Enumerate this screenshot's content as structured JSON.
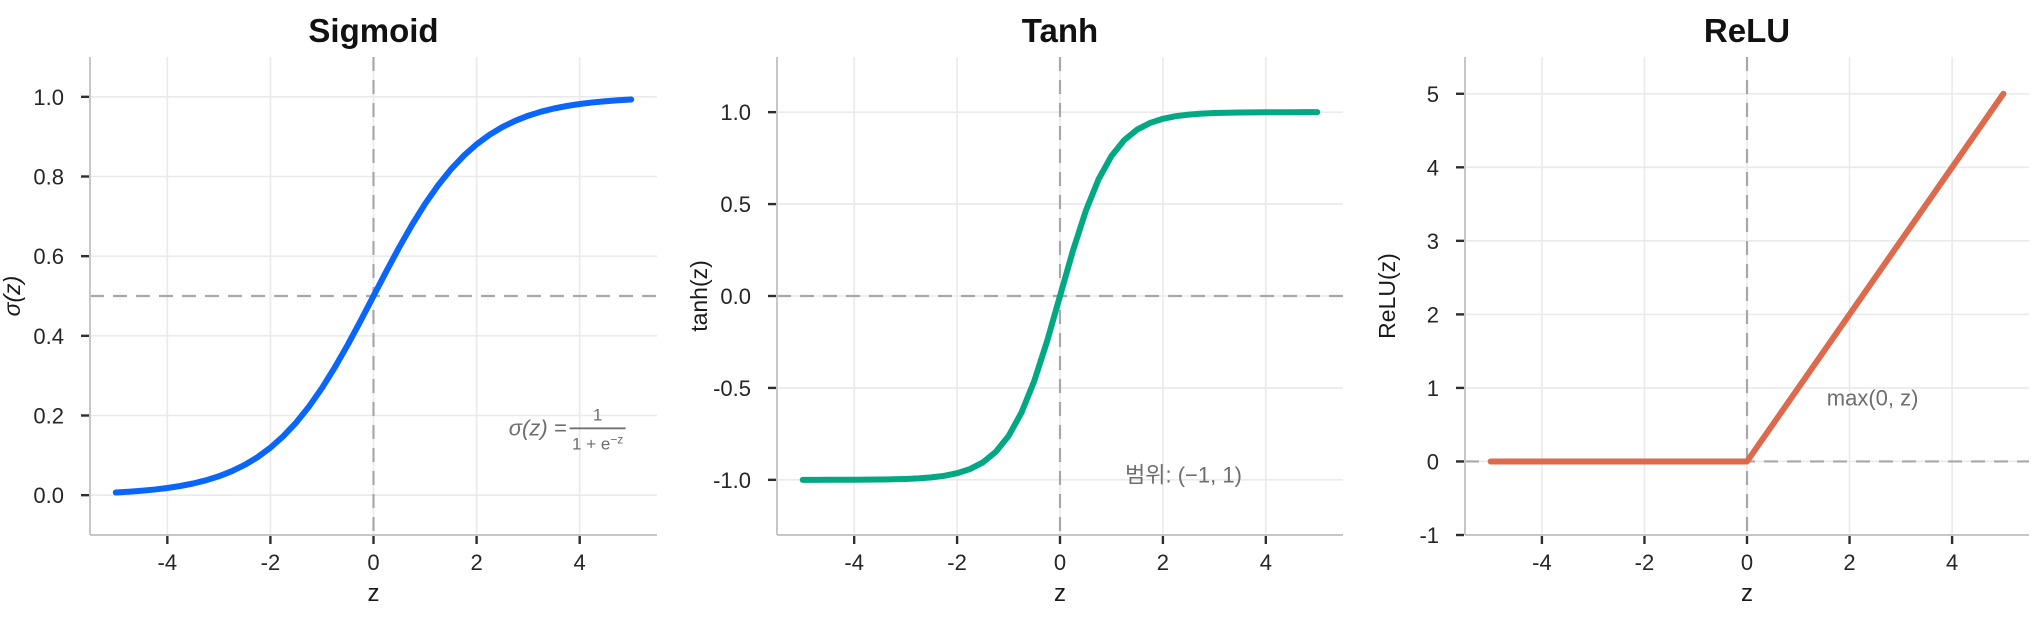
{
  "figure": {
    "background": "#ffffff"
  },
  "style": {
    "grid_color": "#eaeaea",
    "spine_color": "#c7c7c7",
    "tick_color": "#2e2e2e",
    "tick_label_color": "#262626",
    "title_color": "#111111",
    "annotation_color": "#6e6e6e",
    "ref_line_color": "#a8a8a8"
  },
  "chart_data": [
    {
      "type": "line",
      "title": "Sigmoid",
      "xlabel": "z",
      "ylabel": "σ(z)",
      "ylabel_italic": true,
      "color": "#0a66fb",
      "grid": true,
      "xlim": [
        -5.5,
        5.5
      ],
      "ylim": [
        -0.1,
        1.1
      ],
      "xticks": [
        -4,
        -2,
        0,
        2,
        4
      ],
      "xtick_labels": [
        "-4",
        "-2",
        "0",
        "2",
        "4"
      ],
      "yticks": [
        0.0,
        0.2,
        0.4,
        0.6,
        0.8,
        1.0
      ],
      "ytick_labels": [
        "0.0",
        "0.2",
        "0.4",
        "0.6",
        "0.8",
        "1.0"
      ],
      "ref_lines": [
        {
          "orient": "h",
          "value": 0.5
        },
        {
          "orient": "v",
          "value": 0
        }
      ],
      "series": [
        {
          "name": "sigmoid",
          "sampler": {
            "start": -5,
            "step": 0.25
          },
          "y": [
            0.0067,
            0.0086,
            0.011,
            0.0141,
            0.018,
            0.023,
            0.0293,
            0.0373,
            0.0474,
            0.0601,
            0.0759,
            0.0953,
            0.1192,
            0.148,
            0.1824,
            0.2227,
            0.2689,
            0.3208,
            0.3775,
            0.4378,
            0.5,
            0.5622,
            0.6225,
            0.6792,
            0.7311,
            0.7773,
            0.8176,
            0.852,
            0.8808,
            0.9047,
            0.9241,
            0.9399,
            0.9526,
            0.9627,
            0.9707,
            0.977,
            0.982,
            0.9859,
            0.989,
            0.9914,
            0.9933
          ]
        }
      ],
      "annotation": {
        "kind": "formula",
        "lead": "σ(z) = ",
        "numerator": "1",
        "den_base": "1 + e",
        "den_sup": "−z",
        "anchor": [
          3.65,
          0.17
        ]
      }
    },
    {
      "type": "line",
      "title": "Tanh",
      "xlabel": "z",
      "ylabel": "tanh(z)",
      "ylabel_italic": false,
      "color": "#00a884",
      "grid": true,
      "xlim": [
        -5.5,
        5.5
      ],
      "ylim": [
        -1.3,
        1.3
      ],
      "xticks": [
        -4,
        -2,
        0,
        2,
        4
      ],
      "xtick_labels": [
        "-4",
        "-2",
        "0",
        "2",
        "4"
      ],
      "yticks": [
        -1.0,
        -0.5,
        0.0,
        0.5,
        1.0
      ],
      "ytick_labels": [
        "-1.0",
        "-0.5",
        "0.0",
        "0.5",
        "1.0"
      ],
      "ref_lines": [
        {
          "orient": "h",
          "value": 0
        },
        {
          "orient": "v",
          "value": 0
        }
      ],
      "series": [
        {
          "name": "tanh",
          "sampler": {
            "start": -5,
            "step": 0.25
          },
          "y": [
            -0.9999,
            -0.9999,
            -0.9998,
            -0.9996,
            -0.9993,
            -0.9989,
            -0.9982,
            -0.997,
            -0.9951,
            -0.9919,
            -0.9866,
            -0.978,
            -0.964,
            -0.9414,
            -0.9051,
            -0.8483,
            -0.7616,
            -0.6351,
            -0.4621,
            -0.2449,
            0,
            0.2449,
            0.4621,
            0.6351,
            0.7616,
            0.8483,
            0.9051,
            0.9414,
            0.964,
            0.978,
            0.9866,
            0.9919,
            0.9951,
            0.997,
            0.9982,
            0.9989,
            0.9993,
            0.9996,
            0.9998,
            0.9999,
            0.9999
          ]
        }
      ],
      "annotation": {
        "kind": "text",
        "text": "범위: (−1, 1)",
        "anchor": [
          2.4,
          -0.97
        ]
      }
    },
    {
      "type": "line",
      "title": "ReLU",
      "xlabel": "z",
      "ylabel": "ReLU(z)",
      "ylabel_italic": false,
      "color": "#dd6a4c",
      "grid": true,
      "xlim": [
        -5.5,
        5.5
      ],
      "ylim": [
        -1.0,
        5.5
      ],
      "xticks": [
        -4,
        -2,
        0,
        2,
        4
      ],
      "xtick_labels": [
        "-4",
        "-2",
        "0",
        "2",
        "4"
      ],
      "yticks": [
        -1,
        0,
        1,
        2,
        3,
        4,
        5
      ],
      "ytick_labels": [
        "-1",
        "0",
        "1",
        "2",
        "3",
        "4",
        "5"
      ],
      "ref_lines": [
        {
          "orient": "h",
          "value": 0
        },
        {
          "orient": "v",
          "value": 0
        }
      ],
      "series": [
        {
          "name": "relu",
          "x": [
            -5,
            0,
            5
          ],
          "y": [
            0,
            0,
            5
          ]
        }
      ],
      "annotation": {
        "kind": "text",
        "text": "max(0, z)",
        "anchor": [
          2.45,
          0.87
        ]
      }
    }
  ]
}
